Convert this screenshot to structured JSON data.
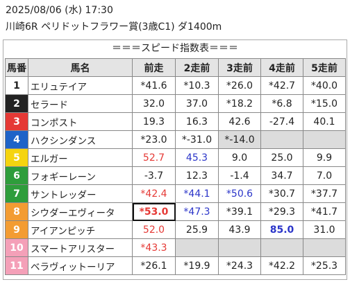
{
  "header": {
    "line1": "2025/08/06 (水) 17:30",
    "line2": "川崎6R ペリドットフラワー賞(3歳C1) ダ1400m"
  },
  "table_title": "＝＝＝スピード指数表＝＝＝",
  "columns": [
    "馬番",
    "馬名",
    "前走",
    "2走前",
    "3走前",
    "4走前",
    "5走前"
  ],
  "rows": [
    {
      "num": "1",
      "name": "エリュテイア",
      "numBg": "#ffffff",
      "numColor": "#222222",
      "cells": [
        {
          "v": "*41.6"
        },
        {
          "v": "*10.3"
        },
        {
          "v": "*26.0"
        },
        {
          "v": "*42.7"
        },
        {
          "v": "*40.0"
        }
      ]
    },
    {
      "num": "2",
      "name": "セラード",
      "numBg": "#222222",
      "numColor": "#ffffff",
      "cells": [
        {
          "v": "32.0"
        },
        {
          "v": "37.0"
        },
        {
          "v": "*18.2"
        },
        {
          "v": "*6.8"
        },
        {
          "v": "*15.0"
        }
      ]
    },
    {
      "num": "3",
      "name": "コンポスト",
      "numBg": "#e53935",
      "numColor": "#ffffff",
      "cells": [
        {
          "v": "19.3"
        },
        {
          "v": "16.3"
        },
        {
          "v": "42.6"
        },
        {
          "v": "-27.4"
        },
        {
          "v": "40.1"
        }
      ]
    },
    {
      "num": "4",
      "name": "ハクシンダンス",
      "numBg": "#1e63c8",
      "numColor": "#ffffff",
      "cells": [
        {
          "v": "*23.0"
        },
        {
          "v": "*-31.0"
        },
        {
          "v": "*-14.0",
          "c": "gray"
        },
        {
          "v": "",
          "c": "gray"
        },
        {
          "v": "",
          "c": "gray"
        }
      ]
    },
    {
      "num": "5",
      "name": "エルガー",
      "numBg": "#f5d40f",
      "numColor": "#ffffff",
      "cells": [
        {
          "v": "52.7",
          "c": "red"
        },
        {
          "v": "45.3",
          "c": "blue"
        },
        {
          "v": "9.0"
        },
        {
          "v": "25.0"
        },
        {
          "v": "9.9"
        }
      ]
    },
    {
      "num": "6",
      "name": "フォギーレーン",
      "numBg": "#2e9d3b",
      "numColor": "#ffffff",
      "cells": [
        {
          "v": "-3.7"
        },
        {
          "v": "12.3"
        },
        {
          "v": "-1.4"
        },
        {
          "v": "34.7"
        },
        {
          "v": "7.0"
        }
      ]
    },
    {
      "num": "7",
      "name": "サントレッダー",
      "numBg": "#2e9d3b",
      "numColor": "#ffffff",
      "cells": [
        {
          "v": "*42.4",
          "c": "red"
        },
        {
          "v": "*44.1",
          "c": "blue"
        },
        {
          "v": "*50.6",
          "c": "blue"
        },
        {
          "v": "*30.7"
        },
        {
          "v": "*37.7"
        }
      ]
    },
    {
      "num": "8",
      "name": "シウダーエヴィータ",
      "numBg": "#f39c32",
      "numColor": "#ffffff",
      "cells": [
        {
          "v": "*53.0",
          "c": "red bold",
          "sel": true
        },
        {
          "v": "*47.3",
          "c": "blue"
        },
        {
          "v": "*39.1"
        },
        {
          "v": "*29.3"
        },
        {
          "v": "*41.7"
        }
      ]
    },
    {
      "num": "9",
      "name": "アイアンピッチ",
      "numBg": "#f39c32",
      "numColor": "#ffffff",
      "cells": [
        {
          "v": "52.0",
          "c": "red"
        },
        {
          "v": "25.9"
        },
        {
          "v": "43.9"
        },
        {
          "v": "85.0",
          "c": "blue bold"
        },
        {
          "v": "31.0"
        }
      ]
    },
    {
      "num": "10",
      "name": "スマートアリスター",
      "numBg": "#f4a0b8",
      "numColor": "#ffffff",
      "cells": [
        {
          "v": "*43.3",
          "c": "red"
        },
        {
          "v": "",
          "c": "gray"
        },
        {
          "v": "",
          "c": "gray"
        },
        {
          "v": "",
          "c": "gray"
        },
        {
          "v": "",
          "c": "gray"
        }
      ]
    },
    {
      "num": "11",
      "name": "ベラヴィットーリア",
      "numBg": "#f4a0b8",
      "numColor": "#ffffff",
      "cells": [
        {
          "v": "*26.1"
        },
        {
          "v": "*19.9"
        },
        {
          "v": "*24.3"
        },
        {
          "v": "*42.2"
        },
        {
          "v": "*25.3"
        }
      ]
    }
  ]
}
